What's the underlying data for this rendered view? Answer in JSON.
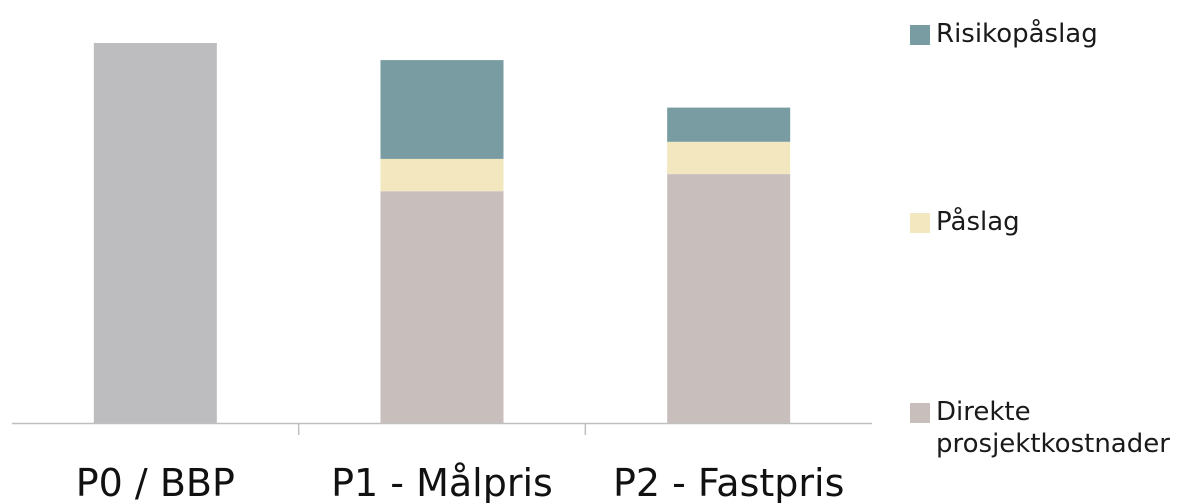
{
  "chart_data": {
    "type": "bar",
    "stacked": true,
    "title": "",
    "xlabel": "",
    "ylabel": "",
    "ylim": [
      0,
      100
    ],
    "grid": false,
    "legend_position": "right",
    "categories": [
      "P0 / BBP",
      "P1 - Målpris",
      "P2 - Fastpris"
    ],
    "series": [
      {
        "name": "",
        "color": "#bdbdbf",
        "values": [
          100,
          0,
          0
        ]
      },
      {
        "name": "Direkte\nprosjektkostnader",
        "color": "#c8bfbd",
        "values": [
          0,
          61,
          65.5
        ]
      },
      {
        "name": "Påslag",
        "color": "#f2e7bf",
        "values": [
          0,
          8.5,
          8.5
        ]
      },
      {
        "name": "Risikopåslag",
        "color": "#789ca1",
        "values": [
          0,
          26,
          9
        ]
      }
    ]
  },
  "legend": {
    "items": [
      {
        "label": "Risikopåslag",
        "color": "#789ca1"
      },
      {
        "label": "Påslag",
        "color": "#f2e7bf"
      },
      {
        "label": "Direkte\nprosjektkostnader",
        "color": "#c8bfbd"
      }
    ]
  },
  "colors": {
    "axis": "#bfbfbf"
  }
}
